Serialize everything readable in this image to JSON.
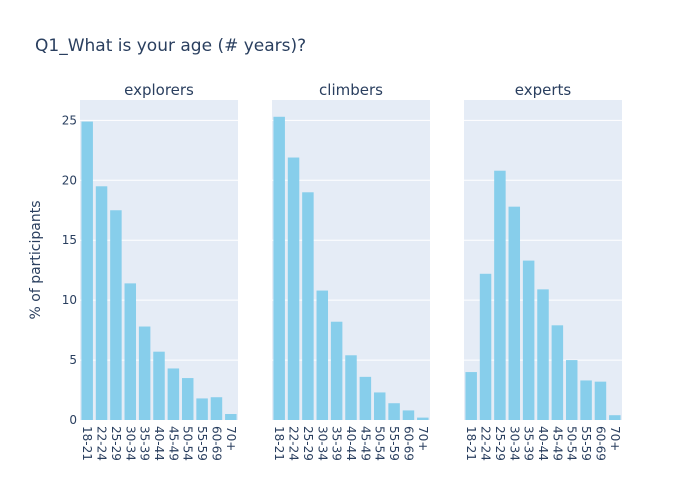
{
  "chart_data": {
    "type": "bar",
    "title": "Q1_What is your age (# years)?",
    "ylabel": "% of participants",
    "ylim": [
      0,
      26.7
    ],
    "yticks": [
      0,
      5,
      10,
      15,
      20,
      25
    ],
    "categories": [
      "18-21",
      "22-24",
      "25-29",
      "30-34",
      "35-39",
      "40-44",
      "45-49",
      "50-54",
      "55-59",
      "60-69",
      "70+"
    ],
    "bar_color": "#87ceeb",
    "plot_bgcolor": "#e5ecf6",
    "grid_color": "#ffffff",
    "panels": [
      {
        "name": "explorers",
        "values": [
          24.9,
          19.5,
          17.5,
          11.4,
          7.8,
          5.7,
          4.3,
          3.5,
          1.8,
          1.9,
          0.5
        ]
      },
      {
        "name": "climbers",
        "values": [
          25.3,
          21.9,
          19.0,
          10.8,
          8.2,
          5.4,
          3.6,
          2.3,
          1.4,
          0.8,
          0.2
        ]
      },
      {
        "name": "experts",
        "values": [
          4.0,
          12.2,
          20.8,
          17.8,
          13.3,
          10.9,
          7.9,
          5.0,
          3.3,
          3.2,
          0.4
        ]
      }
    ]
  }
}
